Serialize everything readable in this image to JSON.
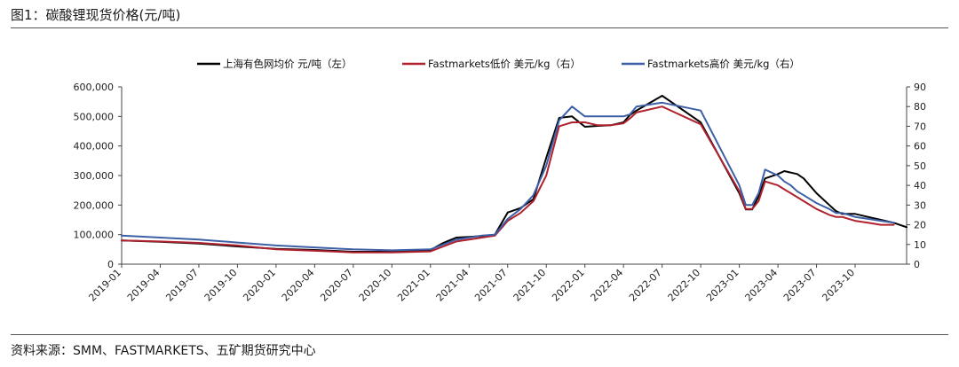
{
  "header": {
    "title": "图1：碳酸锂现货价格(元/吨)"
  },
  "footer": {
    "source": "资料来源：SMM、FASTMARKETS、五矿期货研究中心"
  },
  "chart_data": {
    "type": "line",
    "title": "图1：碳酸锂现货价格(元/吨)",
    "legend_position": "top",
    "grid": false,
    "x_ticks": [
      "2019-01",
      "2019-04",
      "2019-07",
      "2019-10",
      "2020-01",
      "2020-04",
      "2020-07",
      "2020-10",
      "2021-01",
      "2021-04",
      "2021-07",
      "2021-10",
      "2022-01",
      "2022-04",
      "2022-07",
      "2022-10",
      "2023-01",
      "2023-04",
      "2023-07",
      "2023-10"
    ],
    "x_range": [
      0,
      61
    ],
    "y_left": {
      "min": 0,
      "max": 600000,
      "step": 100000,
      "tick_labels": [
        "0",
        "100,000",
        "200,000",
        "300,000",
        "400,000",
        "500,000",
        "600,000"
      ]
    },
    "y_right": {
      "min": 0,
      "max": 90,
      "step": 10,
      "tick_labels": [
        "0",
        "10",
        "20",
        "30",
        "40",
        "50",
        "60",
        "70",
        "80",
        "90"
      ]
    },
    "series": [
      {
        "name": "上海有色网均价 元/吨（左）",
        "axis": "left",
        "color": "#000000",
        "x": [
          0,
          3,
          6,
          9,
          12,
          15,
          18,
          21,
          24,
          25,
          26,
          27,
          28,
          29,
          30,
          31,
          32,
          33,
          34,
          35,
          36,
          37,
          38,
          39,
          39.5,
          40,
          42,
          45,
          48,
          48.5,
          49,
          49.5,
          50,
          51,
          51.5,
          52,
          52.5,
          53,
          54,
          55,
          55.5,
          56,
          56.5,
          57,
          58,
          59,
          60,
          61
        ],
        "y": [
          80000,
          76000,
          70000,
          60000,
          52000,
          48000,
          42000,
          42000,
          48000,
          72000,
          90000,
          92000,
          95000,
          100000,
          175000,
          190000,
          220000,
          360000,
          495000,
          500000,
          465000,
          468000,
          470000,
          480000,
          505000,
          520000,
          570000,
          480000,
          240000,
          185000,
          185000,
          230000,
          290000,
          305000,
          315000,
          310000,
          305000,
          290000,
          240000,
          200000,
          180000,
          170000,
          170000,
          170000,
          160000,
          150000,
          140000,
          125000
        ]
      },
      {
        "name": "Fastmarkets低价 美元/kg（右）",
        "axis": "right",
        "color": "#b0212e",
        "x": [
          0,
          3,
          6,
          9,
          12,
          15,
          18,
          21,
          24,
          25,
          26,
          27,
          28,
          29,
          30,
          31,
          32,
          33,
          34,
          35,
          36,
          37,
          38,
          39,
          39.5,
          40,
          42,
          45,
          48,
          48.5,
          49,
          49.5,
          50,
          51,
          51.5,
          52,
          52.5,
          53,
          54,
          55,
          55.5,
          56,
          56.5,
          57,
          58,
          59,
          60
        ],
        "y": [
          12,
          11.5,
          10.8,
          9.5,
          7.5,
          6.8,
          6,
          6,
          6.5,
          9,
          11.5,
          12.5,
          13.5,
          14.5,
          22,
          26,
          32,
          45,
          70,
          72,
          72,
          70.5,
          70.5,
          71.5,
          74,
          77,
          80,
          71,
          37,
          28,
          28,
          32,
          42,
          40,
          38,
          36,
          34,
          32,
          28,
          25,
          24,
          24,
          23,
          22,
          21,
          20,
          20
        ]
      },
      {
        "name": "Fastmarkets高价 美元/kg（右）",
        "axis": "right",
        "color": "#3c5fa5",
        "x": [
          0,
          3,
          6,
          9,
          12,
          15,
          18,
          21,
          24,
          25,
          26,
          27,
          28,
          29,
          30,
          31,
          32,
          33,
          34,
          35,
          36,
          37,
          38,
          39,
          39.5,
          40,
          42,
          45,
          48,
          48.5,
          49,
          49.5,
          50,
          51,
          51.5,
          52,
          52.5,
          53,
          54,
          55,
          55.5,
          56,
          56.5,
          57,
          58,
          59,
          60
        ],
        "y": [
          14.5,
          13.5,
          12.5,
          11,
          9.5,
          8.5,
          7.5,
          7,
          7.5,
          10,
          12.5,
          13.5,
          14.5,
          15,
          23,
          28,
          35,
          50,
          73,
          80,
          75,
          75,
          75,
          75,
          76,
          80,
          82,
          78,
          40,
          30,
          30,
          36,
          48,
          45,
          42,
          40,
          37,
          35,
          31,
          28,
          26,
          26,
          25,
          24,
          23,
          22,
          21
        ]
      }
    ]
  }
}
